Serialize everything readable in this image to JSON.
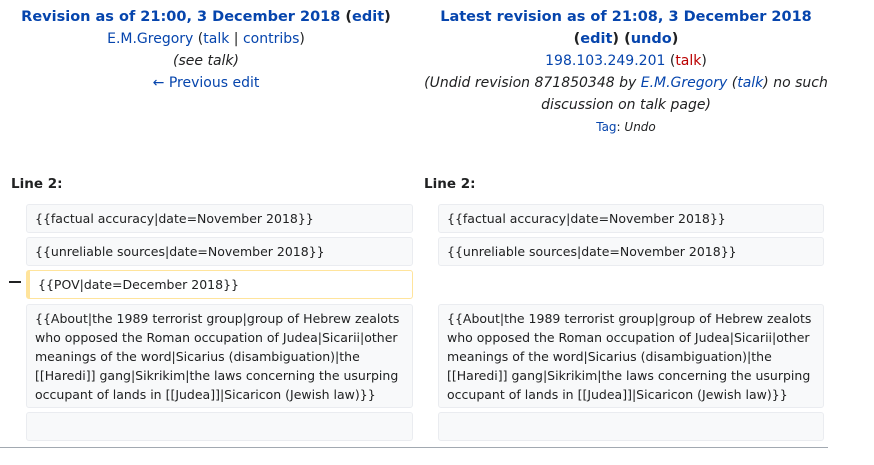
{
  "left_header": {
    "title_text": "Revision as of 21:00, 3 December 2018",
    "edit_label": "edit",
    "user": "E.M.Gregory",
    "talk_label": "talk",
    "contribs_label": "contribs",
    "summary": "(see talk)",
    "prev_edit": "← Previous edit"
  },
  "right_header": {
    "title_text": "Latest revision as of 21:08, 3 December 2018",
    "edit_label": "edit",
    "undo_label": "undo",
    "ip": "198.103.249.201",
    "talk_label": "talk",
    "summary_pre": "(Undid revision 871850348 by ",
    "summary_user": "E.M.Gregory",
    "summary_talk": "talk",
    "summary_post": ") no such discussion on talk page)",
    "tag_label": "Tag",
    "tag_value": "Undo"
  },
  "line_label": "Line 2:",
  "deleted_marker": "−",
  "left_lines": [
    "{{factual accuracy|date=November 2018}}",
    "{{unreliable sources|date=November 2018}}",
    "{{POV|date=December 2018}}",
    "{{About|the 1989 terrorist group|group of Hebrew zealots who opposed the Roman occupation of Judea|Sicarii|other meanings of the word|Sicarius (disambiguation)|the [[Haredi]] gang|Sikrikim|the laws concerning the usurping occupant of lands in [[Judea]]|Sicaricon (Jewish law)}}",
    ""
  ],
  "right_lines": [
    "{{factual accuracy|date=November 2018}}",
    "{{unreliable sources|date=November 2018}}",
    "{{About|the 1989 terrorist group|group of Hebrew zealots who opposed the Roman occupation of Judea|Sicarii|other meanings of the word|Sicarius (disambiguation)|the [[Haredi]] gang|Sikrikim|the laws concerning the usurping occupant of lands in [[Judea]]|Sicaricon (Jewish law)}}",
    ""
  ]
}
